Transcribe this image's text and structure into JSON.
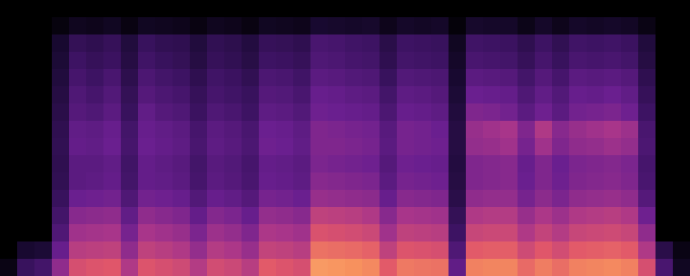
{
  "chart_data": {
    "type": "heatmap",
    "tick_labels": false,
    "zlim": [
      0,
      100
    ],
    "cells": [
      [
        0,
        0,
        0,
        0,
        0,
        0,
        0,
        0,
        0,
        0,
        0,
        0,
        0,
        0,
        0,
        0,
        0,
        0,
        0,
        0,
        0,
        0,
        0,
        0,
        0,
        0,
        0,
        0,
        0,
        0,
        0,
        0,
        0,
        0,
        0,
        0,
        0,
        0,
        0,
        0
      ],
      [
        0,
        0,
        0,
        4,
        9,
        8,
        10,
        5,
        10,
        9,
        8,
        5,
        9,
        8,
        5,
        10,
        9,
        8,
        14,
        13,
        12,
        13,
        8,
        12,
        11,
        12,
        3,
        13,
        12,
        12,
        7,
        12,
        8,
        12,
        11,
        12,
        11,
        6,
        0,
        0
      ],
      [
        0,
        0,
        0,
        14,
        26,
        24,
        27,
        18,
        28,
        25,
        24,
        18,
        25,
        23,
        19,
        27,
        26,
        24,
        34,
        33,
        31,
        30,
        22,
        30,
        29,
        28,
        10,
        31,
        30,
        29,
        24,
        30,
        25,
        31,
        30,
        31,
        29,
        18,
        0,
        0
      ],
      [
        0,
        0,
        0,
        16,
        30,
        27,
        29,
        20,
        31,
        28,
        26,
        20,
        27,
        25,
        21,
        30,
        29,
        27,
        36,
        35,
        33,
        32,
        24,
        32,
        31,
        30,
        12,
        34,
        33,
        32,
        27,
        33,
        28,
        34,
        33,
        34,
        32,
        20,
        0,
        0
      ],
      [
        0,
        0,
        0,
        18,
        33,
        30,
        34,
        23,
        35,
        32,
        30,
        24,
        31,
        29,
        25,
        35,
        34,
        31,
        40,
        39,
        37,
        36,
        28,
        37,
        36,
        35,
        14,
        40,
        39,
        38,
        32,
        38,
        33,
        40,
        39,
        40,
        38,
        24,
        0,
        0
      ],
      [
        0,
        0,
        0,
        20,
        36,
        33,
        37,
        26,
        38,
        35,
        33,
        27,
        33,
        31,
        28,
        38,
        37,
        34,
        44,
        43,
        41,
        40,
        32,
        41,
        40,
        38,
        16,
        45,
        44,
        43,
        36,
        42,
        37,
        44,
        43,
        45,
        42,
        27,
        0,
        0
      ],
      [
        0,
        0,
        0,
        22,
        38,
        36,
        40,
        28,
        42,
        38,
        36,
        29,
        36,
        34,
        30,
        41,
        40,
        37,
        46,
        45,
        44,
        43,
        35,
        44,
        43,
        41,
        18,
        50,
        49,
        47,
        40,
        46,
        40,
        47,
        48,
        49,
        46,
        30,
        0,
        0
      ],
      [
        0,
        0,
        0,
        24,
        42,
        41,
        44,
        32,
        44,
        42,
        40,
        33,
        40,
        38,
        34,
        45,
        44,
        41,
        50,
        49,
        48,
        47,
        39,
        48,
        47,
        45,
        20,
        56,
        58,
        60,
        50,
        62,
        52,
        56,
        58,
        60,
        57,
        34,
        0,
        0
      ],
      [
        0,
        0,
        0,
        25,
        43,
        42,
        45,
        33,
        45,
        43,
        41,
        34,
        41,
        39,
        35,
        46,
        45,
        42,
        50,
        50,
        49,
        48,
        40,
        48,
        47,
        46,
        20,
        55,
        56,
        58,
        48,
        58,
        50,
        54,
        55,
        57,
        55,
        35,
        0,
        0
      ],
      [
        0,
        0,
        0,
        24,
        40,
        40,
        42,
        31,
        43,
        41,
        39,
        32,
        39,
        37,
        33,
        43,
        42,
        40,
        49,
        48,
        47,
        46,
        38,
        46,
        45,
        44,
        19,
        50,
        51,
        52,
        44,
        50,
        45,
        49,
        50,
        51,
        49,
        33,
        0,
        0
      ],
      [
        0,
        0,
        0,
        25,
        40,
        41,
        43,
        32,
        43,
        42,
        40,
        33,
        40,
        38,
        34,
        44,
        43,
        41,
        52,
        51,
        50,
        49,
        40,
        48,
        47,
        46,
        20,
        50,
        51,
        52,
        45,
        50,
        46,
        50,
        51,
        52,
        50,
        34,
        0,
        0
      ],
      [
        0,
        0,
        0,
        28,
        45,
        46,
        47,
        36,
        47,
        46,
        44,
        37,
        44,
        42,
        38,
        48,
        47,
        45,
        56,
        55,
        54,
        53,
        44,
        52,
        51,
        50,
        22,
        54,
        55,
        55,
        48,
        53,
        49,
        54,
        55,
        56,
        54,
        38,
        0,
        0
      ],
      [
        0,
        0,
        0,
        32,
        52,
        53,
        54,
        42,
        54,
        52,
        50,
        43,
        51,
        49,
        44,
        55,
        54,
        52,
        66,
        65,
        64,
        62,
        52,
        60,
        59,
        58,
        26,
        62,
        63,
        63,
        56,
        61,
        57,
        62,
        63,
        64,
        62,
        46,
        0,
        0
      ],
      [
        0,
        0,
        0,
        36,
        58,
        59,
        60,
        48,
        60,
        58,
        56,
        49,
        57,
        55,
        50,
        61,
        60,
        58,
        73,
        72,
        71,
        69,
        58,
        66,
        65,
        64,
        30,
        68,
        69,
        69,
        62,
        67,
        63,
        68,
        69,
        70,
        68,
        54,
        0,
        0
      ],
      [
        0,
        14,
        16,
        44,
        64,
        65,
        66,
        54,
        66,
        64,
        62,
        55,
        63,
        61,
        56,
        67,
        66,
        64,
        82,
        81,
        80,
        78,
        66,
        74,
        73,
        72,
        36,
        76,
        77,
        77,
        70,
        75,
        71,
        76,
        77,
        78,
        76,
        62,
        22,
        6
      ],
      [
        6,
        28,
        32,
        54,
        72,
        74,
        75,
        62,
        74,
        72,
        70,
        63,
        71,
        69,
        64,
        76,
        74,
        72,
        92,
        91,
        90,
        88,
        76,
        84,
        83,
        82,
        42,
        86,
        87,
        87,
        80,
        85,
        81,
        86,
        87,
        88,
        86,
        72,
        34,
        10
      ]
    ]
  }
}
